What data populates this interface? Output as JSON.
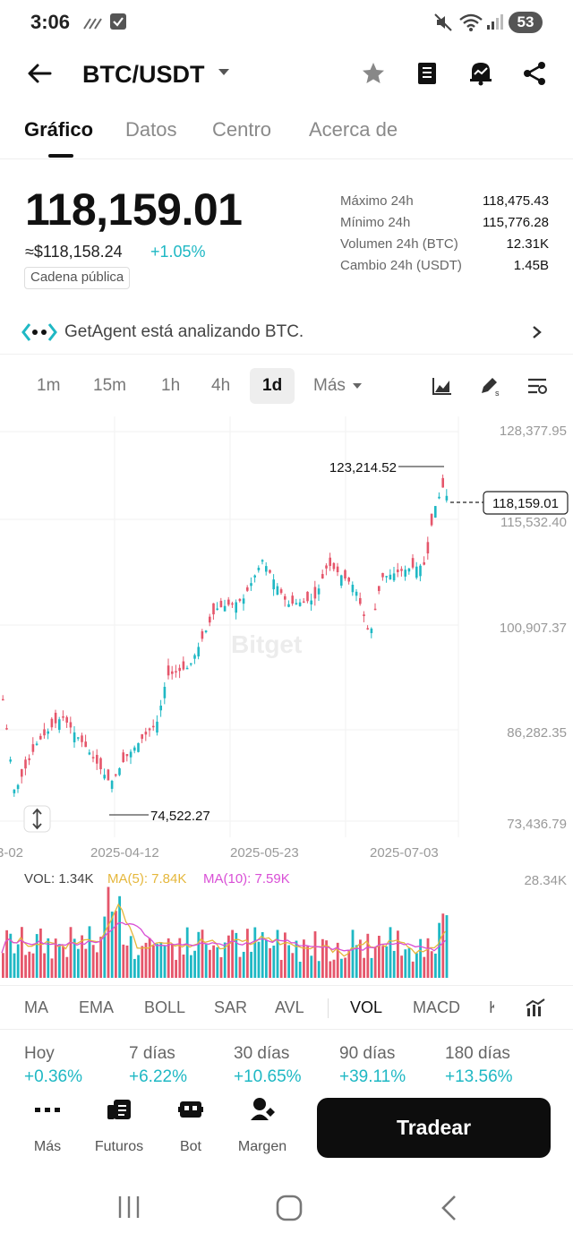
{
  "status_bar": {
    "time": "3:06",
    "battery": "53"
  },
  "header": {
    "pair": "BTC/USDT"
  },
  "tabs": [
    {
      "label": "Gráfico",
      "active": true
    },
    {
      "label": "Datos",
      "active": false
    },
    {
      "label": "Centro",
      "active": false
    },
    {
      "label": "Acerca de",
      "active": false
    }
  ],
  "ticker": {
    "price": "118,159.01",
    "usd_price": "≈$118,158.24",
    "change": "+1.05%",
    "chain_badge": "Cadena pública",
    "stats": [
      {
        "label": "Máximo 24h",
        "value": "118,475.43"
      },
      {
        "label": "Mínimo 24h",
        "value": "115,776.28"
      },
      {
        "label": "Volumen 24h (BTC)",
        "value": "12.31K"
      },
      {
        "label": "Cambio 24h (USDT)",
        "value": "1.45B"
      }
    ]
  },
  "agent_banner": {
    "text": "GetAgent está analizando BTC."
  },
  "intervals": [
    "1m",
    "15m",
    "1h",
    "4h",
    "1d",
    "Más"
  ],
  "active_interval": "1d",
  "chart": {
    "watermark": "Bitget",
    "y_axis_labels": [
      "128,377.95",
      "115,532.40",
      "100,907.37",
      "86,282.35",
      "73,436.79"
    ],
    "current_price_tag": "118,159.01",
    "high_marker": "123,214.52",
    "low_marker": "74,522.27",
    "date_labels": [
      "3-02",
      "2025-04-12",
      "2025-05-23",
      "2025-07-03"
    ],
    "colors": {
      "up": "#1fb8c4",
      "down": "#e5566b"
    }
  },
  "volume": {
    "vol_label": "VOL: 1.34K",
    "ma5_label": "MA(5): 7.84K",
    "ma10_label": "MA(10): 7.59K",
    "axis_max": "28.34K",
    "colors": {
      "ma5": "#e5b73b",
      "ma10": "#d94fd6"
    }
  },
  "indicators": [
    "MA",
    "EMA",
    "BOLL",
    "SAR",
    "AVL",
    "VOL",
    "MACD",
    "K"
  ],
  "active_indicator": "VOL",
  "periods": [
    {
      "label": "Hoy",
      "value": "+0.36%"
    },
    {
      "label": "7 días",
      "value": "+6.22%"
    },
    {
      "label": "30 días",
      "value": "+10.65%"
    },
    {
      "label": "90 días",
      "value": "+39.11%"
    },
    {
      "label": "180 días",
      "value": "+13.56%"
    }
  ],
  "bottom_nav": [
    {
      "label": "Más",
      "icon": "more-icon"
    },
    {
      "label": "Futuros",
      "icon": "futures-icon"
    },
    {
      "label": "Bot",
      "icon": "bot-icon"
    },
    {
      "label": "Margen",
      "icon": "margin-icon"
    }
  ],
  "trade_button": "Tradear"
}
